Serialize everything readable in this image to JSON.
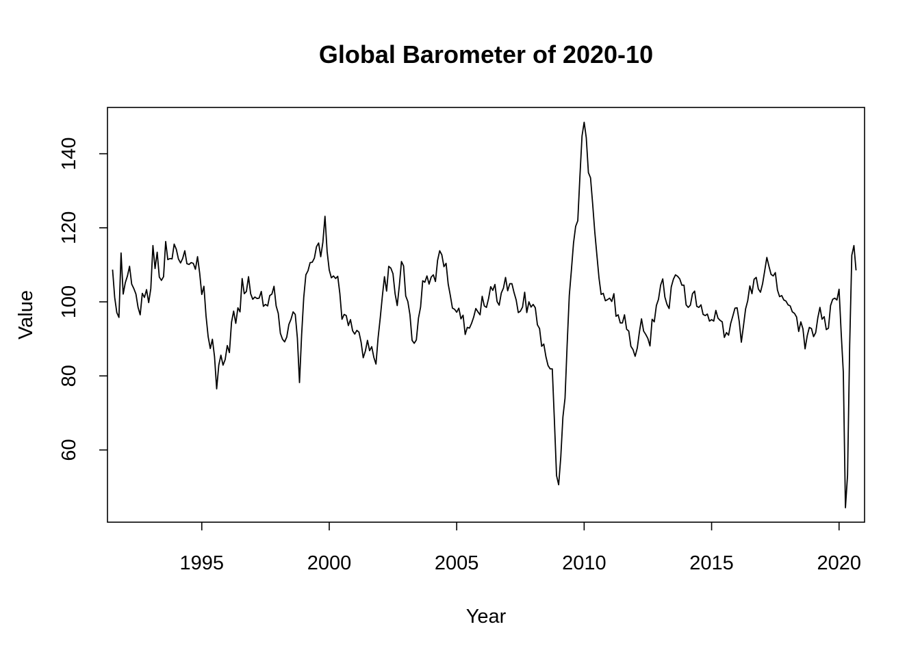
{
  "chart_data": {
    "type": "line",
    "title": "Global Barometer of 2020-10",
    "xlabel": "Year",
    "ylabel": "Value",
    "xlim": [
      1991.3,
      2021.0
    ],
    "ylim": [
      40.5,
      152.5
    ],
    "x_ticks": [
      1995,
      2000,
      2005,
      2010,
      2015,
      2020
    ],
    "x_tick_labels": [
      "1995",
      "2000",
      "2005",
      "2010",
      "2015",
      "2020"
    ],
    "y_ticks": [
      60,
      80,
      100,
      120,
      140
    ],
    "y_tick_labels": [
      "60",
      "80",
      "100",
      "120",
      "140"
    ],
    "grid": false,
    "legend": "none",
    "line_color": "#000000",
    "start": "1991-07",
    "frequency": "monthly",
    "series": [
      {
        "values": [
          108.7,
          101.2,
          97.1,
          95.8,
          113.2,
          102.1,
          105.2,
          107.0,
          109.6,
          104.8,
          103.6,
          102.1,
          98.5,
          96.5,
          102.3,
          101.2,
          103.3,
          99.8,
          103.6,
          115.2,
          109.0,
          113.4,
          106.7,
          105.8,
          106.8,
          116.3,
          111.4,
          111.7,
          111.6,
          115.6,
          114.2,
          111.6,
          110.5,
          111.7,
          113.8,
          110.3,
          110.1,
          110.6,
          110.4,
          108.8,
          112.2,
          107.8,
          102.0,
          104.2,
          96.2,
          90.6,
          87.4,
          89.9,
          85.2,
          76.5,
          82.9,
          85.6,
          82.9,
          84.4,
          88.2,
          86.3,
          94.5,
          97.5,
          94.2,
          98.4,
          97.3,
          106.3,
          102.2,
          102.8,
          106.8,
          102.2,
          100.7,
          101.3,
          100.9,
          101.0,
          102.8,
          98.8,
          99.3,
          98.9,
          101.7,
          102.1,
          104.2,
          98.9,
          96.9,
          91.5,
          89.9,
          89.2,
          90.5,
          93.9,
          95.3,
          97.3,
          96.6,
          90.2,
          78.2,
          91.1,
          101.2,
          107.3,
          108.4,
          110.6,
          110.7,
          111.8,
          114.9,
          115.9,
          112.2,
          116.1,
          123.1,
          113.6,
          108.6,
          106.5,
          107.0,
          106.3,
          106.9,
          102.2,
          95.3,
          96.6,
          96.3,
          93.6,
          95.2,
          92.2,
          91.3,
          92.3,
          91.8,
          89.1,
          84.9,
          86.7,
          89.6,
          86.8,
          87.9,
          85.0,
          83.2,
          90.3,
          95.6,
          101.5,
          106.8,
          102.9,
          109.6,
          109.1,
          107.6,
          102.2,
          99.0,
          104.4,
          110.9,
          109.7,
          101.6,
          100.1,
          96.5,
          89.6,
          88.8,
          89.7,
          95.6,
          98.6,
          105.7,
          105.3,
          107.0,
          104.8,
          106.7,
          107.3,
          105.5,
          111.2,
          113.8,
          112.7,
          109.5,
          110.4,
          104.8,
          101.7,
          98.3,
          98.0,
          97.2,
          98.3,
          95.4,
          96.4,
          91.2,
          93.1,
          92.9,
          94.2,
          95.9,
          98.2,
          97.3,
          96.5,
          101.5,
          98.9,
          98.5,
          100.9,
          104.1,
          103.1,
          104.7,
          100.1,
          99.1,
          102.4,
          103.7,
          106.6,
          103.0,
          104.9,
          104.9,
          102.5,
          100.5,
          97.1,
          97.5,
          98.6,
          102.6,
          97.1,
          100.0,
          98.6,
          99.3,
          98.4,
          93.8,
          92.8,
          88.0,
          88.6,
          85.2,
          82.8,
          81.9,
          81.9,
          67.9,
          53.1,
          50.6,
          58.1,
          68.9,
          74.0,
          88.5,
          101.7,
          108.6,
          115.9,
          120.4,
          121.9,
          133.8,
          144.8,
          148.5,
          144.3,
          134.9,
          133.5,
          126.5,
          118.9,
          112.6,
          106.4,
          102.0,
          102.3,
          100.3,
          100.6,
          101.0,
          100.1,
          102.2,
          96.1,
          96.5,
          94.3,
          94.3,
          96.5,
          92.6,
          92.1,
          88.0,
          87.1,
          85.3,
          87.5,
          91.8,
          95.4,
          92.1,
          91.2,
          90.1,
          88.1,
          95.3,
          94.6,
          99.0,
          100.7,
          104.5,
          106.2,
          101.3,
          99.3,
          98.2,
          104.0,
          106.1,
          107.3,
          106.9,
          106.2,
          104.5,
          104.5,
          99.2,
          98.5,
          99.1,
          102.2,
          102.9,
          98.8,
          98.5,
          99.2,
          96.6,
          96.3,
          96.7,
          94.8,
          95.2,
          94.8,
          97.7,
          95.6,
          95.0,
          94.6,
          90.4,
          91.7,
          91.0,
          94.2,
          96.2,
          98.3,
          98.4,
          94.7,
          89.1,
          93.5,
          98.1,
          100.3,
          104.3,
          102.2,
          106.1,
          106.6,
          103.5,
          102.6,
          104.9,
          108.4,
          112.0,
          109.6,
          107.4,
          107.0,
          107.9,
          103.2,
          101.4,
          101.7,
          100.5,
          100.2,
          99.2,
          98.9,
          97.3,
          96.9,
          95.9,
          92.0,
          94.6,
          92.7,
          87.3,
          90.8,
          93.1,
          92.8,
          90.6,
          91.7,
          95.7,
          98.5,
          95.3,
          96.0,
          92.5,
          92.9,
          99.0,
          100.7,
          101.0,
          100.5,
          103.4,
          91.6,
          81.0,
          44.4,
          53.2,
          88.4,
          112.6,
          115.2,
          108.5
        ]
      }
    ]
  }
}
